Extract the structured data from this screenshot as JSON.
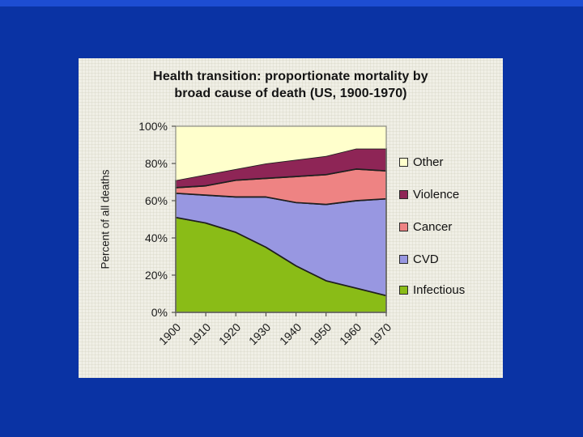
{
  "slide": {
    "background_color": "#0a33a4",
    "top_strip_color": "#1d4dd2",
    "panel_color": "#f0efe6"
  },
  "chart_data": {
    "type": "area",
    "stacked": true,
    "percent_stacked": true,
    "title": "Health transition: proportionate mortality by broad cause of death (US, 1900-1970)",
    "title_lines": [
      "Health transition: proportionate mortality by",
      "broad cause of death (US, 1900-1970)"
    ],
    "xlabel": "",
    "ylabel": "Percent of all deaths",
    "ylim": [
      0,
      100
    ],
    "y_ticks": [
      "100%",
      "80%",
      "60%",
      "40%",
      "20%",
      "0%"
    ],
    "grid": false,
    "legend_position": "right",
    "years": [
      "1900",
      "1910",
      "1920",
      "1930",
      "1940",
      "1950",
      "1960",
      "1970"
    ],
    "series": [
      {
        "key": "infectious",
        "name": "Infectious",
        "color": "#8abc17",
        "outline": "#1f1f1f",
        "values": [
          51,
          48,
          43,
          35,
          25,
          17,
          13,
          9
        ]
      },
      {
        "key": "cvd",
        "name": "CVD",
        "color": "#9897e1",
        "outline": "#1f1f1f",
        "values": [
          13,
          15,
          19,
          27,
          34,
          41,
          47,
          52
        ]
      },
      {
        "key": "cancer",
        "name": "Cancer",
        "color": "#ee8383",
        "outline": "#1f1f1f",
        "values": [
          3,
          5,
          9,
          10,
          14,
          16,
          17,
          15
        ]
      },
      {
        "key": "violence",
        "name": "Violence",
        "color": "#8e2556",
        "outline": "#1f1f1f",
        "values": [
          4,
          6,
          6,
          8,
          9,
          10,
          11,
          12
        ]
      },
      {
        "key": "other",
        "name": "Other",
        "color": "#ffffcc",
        "outline": null,
        "values": [
          29,
          26,
          23,
          20,
          18,
          16,
          12,
          12
        ]
      }
    ],
    "legend": [
      {
        "label": "Other",
        "color": "#ffffcc"
      },
      {
        "label": "Violence",
        "color": "#8e2556"
      },
      {
        "label": "Cancer",
        "color": "#ee8383"
      },
      {
        "label": "CVD",
        "color": "#9897e1"
      },
      {
        "label": "Infectious",
        "color": "#8abc17"
      }
    ]
  }
}
